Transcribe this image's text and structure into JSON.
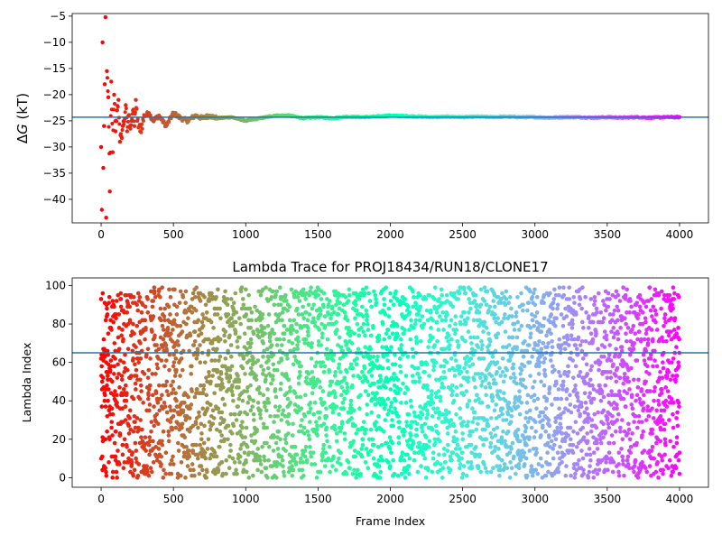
{
  "chart_data": [
    {
      "type": "scatter",
      "title": "",
      "ylabel_prefix": "Δ",
      "ylabel_var": "G",
      "ylabel_suffix": " (kT)",
      "xlabel": "",
      "xlim": [
        -200,
        4200
      ],
      "ylim": [
        -44.5,
        -4.5
      ],
      "xticks": [
        0,
        500,
        1000,
        1500,
        2000,
        2500,
        3000,
        3500,
        4000
      ],
      "yticks": [
        -40,
        -35,
        -30,
        -25,
        -20,
        -15,
        -10,
        -5
      ],
      "hline": {
        "y": -24.3,
        "color": "#1f77b4"
      },
      "colormap": "rainbow",
      "series": [
        {
          "x": [
            0,
            5,
            10,
            15,
            20,
            25,
            30,
            35,
            40,
            50,
            60,
            70,
            80,
            90,
            100,
            110,
            120,
            130,
            140,
            150,
            160,
            170,
            180,
            190,
            200,
            210,
            220,
            230,
            240,
            250,
            270,
            300,
            330,
            360,
            400,
            450,
            500,
            550,
            600,
            650,
            700,
            750,
            800,
            900,
            1000,
            1100,
            1200,
            1300,
            1400,
            1500,
            1600,
            1700,
            1800,
            1900,
            2000,
            2100,
            2200,
            2300,
            2400,
            2500,
            2600,
            2700,
            2800,
            2900,
            3000,
            3100,
            3200,
            3300,
            3400,
            3500,
            3600,
            3700,
            3800,
            3900,
            4000
          ],
          "y": [
            -30,
            -42,
            -10,
            -34,
            -26,
            -18,
            -5.2,
            -43.5,
            -15.5,
            -20.5,
            -38.5,
            -17.5,
            -31,
            -20,
            -27,
            -23,
            -21,
            -29,
            -28,
            -26,
            -25,
            -22,
            -27,
            -24,
            -26,
            -25,
            -23,
            -26,
            -21,
            -25,
            -27,
            -24,
            -23.5,
            -25,
            -24,
            -26,
            -23.5,
            -24.5,
            -25,
            -24,
            -24.5,
            -24,
            -24.5,
            -24.3,
            -25,
            -24.5,
            -24,
            -24,
            -24.5,
            -24.3,
            -24.5,
            -24.2,
            -24.3,
            -24.2,
            -24.0,
            -24.1,
            -24.2,
            -24.3,
            -24.2,
            -24.3,
            -24.2,
            -24.3,
            -24.2,
            -24.3,
            -24.3,
            -24.4,
            -24.3,
            -24.3,
            -24.4,
            -24.3,
            -24.4,
            -24.3,
            -24.4,
            -24.3,
            -24.3
          ]
        }
      ]
    },
    {
      "type": "scatter",
      "title": "Lambda Trace for PROJ18434/RUN18/CLONE17",
      "xlabel": "Frame Index",
      "ylabel": "Lambda Index",
      "xlim": [
        -200,
        4200
      ],
      "ylim": [
        -5,
        104
      ],
      "xticks": [
        0,
        500,
        1000,
        1500,
        2000,
        2500,
        3000,
        3500,
        4000
      ],
      "yticks": [
        0,
        20,
        40,
        60,
        80,
        100
      ],
      "hline": {
        "y": 65,
        "color": "#1f77b4"
      },
      "colormap": "rainbow",
      "series": [
        {
          "x_range": [
            0,
            4000
          ],
          "y_range": [
            0,
            99
          ],
          "n_points": 4000,
          "x": [
            0,
            20,
            40,
            100,
            150,
            200,
            300,
            400,
            500,
            700,
            900,
            1100,
            1300,
            1500,
            1700,
            1900,
            2100,
            2300,
            2500,
            2700,
            2900,
            3100,
            3300,
            3500,
            3700,
            3900,
            4000
          ],
          "y": [
            62,
            5,
            88,
            40,
            17,
            82,
            6,
            97,
            58,
            12,
            93,
            33,
            71,
            3,
            55,
            90,
            24,
            68,
            44,
            98,
            9,
            77,
            35,
            61,
            85,
            28,
            2
          ]
        }
      ]
    }
  ]
}
